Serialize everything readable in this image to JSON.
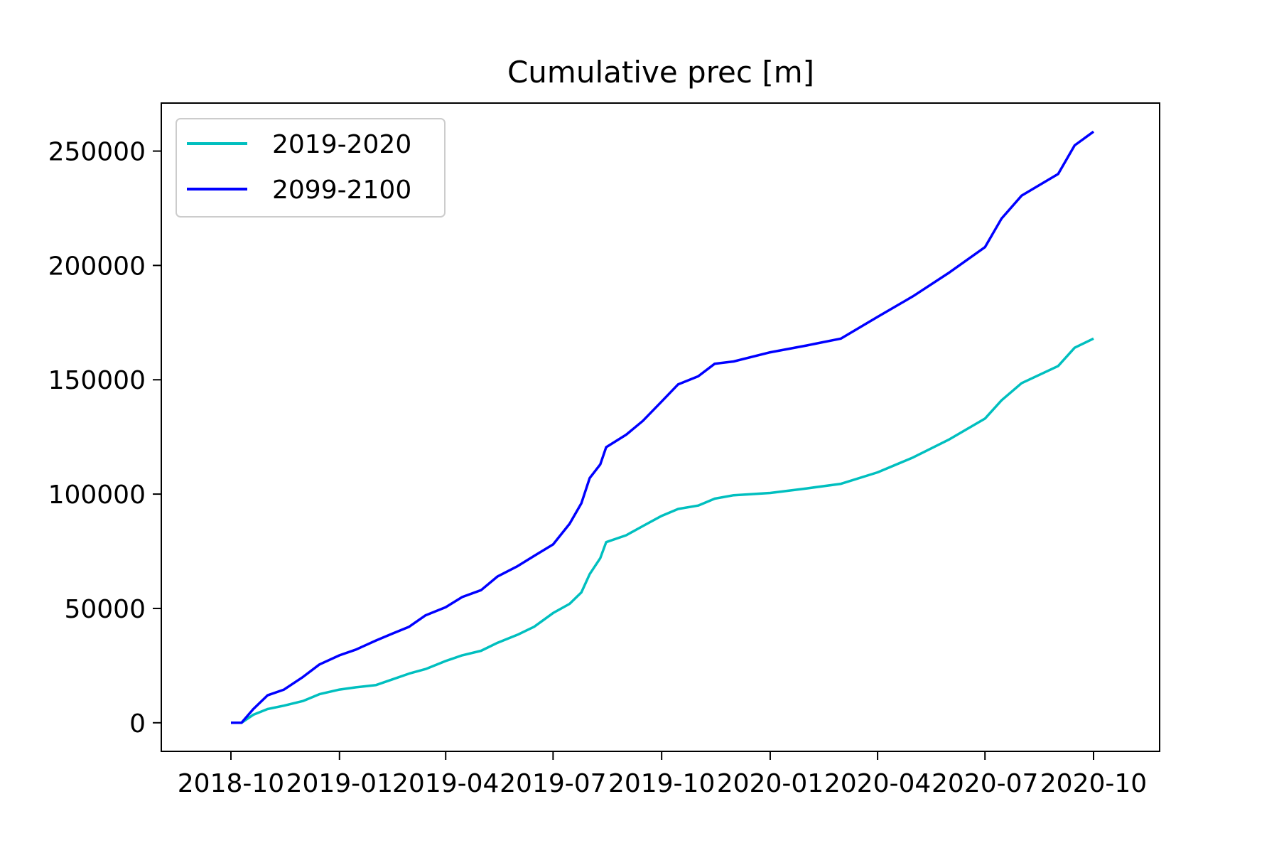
{
  "chart_data": {
    "type": "line",
    "title": "Cumulative prec [m]",
    "xlabel": "",
    "ylabel": "",
    "x_ticks": [
      "2018-10",
      "2019-01",
      "2019-04",
      "2019-07",
      "2019-10",
      "2020-01",
      "2020-04",
      "2020-07",
      "2020-10"
    ],
    "y_ticks": [
      "0",
      "50000",
      "100000",
      "150000",
      "200000",
      "250000"
    ],
    "ylim": [
      -12500,
      271000
    ],
    "xlim": [
      "2018-08-03",
      "2020-11-26"
    ],
    "grid": false,
    "legend_position": "top-left",
    "series": [
      {
        "name": "2019-2020",
        "color": "#00bfbf",
        "points": [
          [
            "2018-10-01",
            0
          ],
          [
            "2018-10-10",
            0
          ],
          [
            "2018-10-20",
            3500
          ],
          [
            "2018-11-01",
            6000
          ],
          [
            "2018-11-15",
            7500
          ],
          [
            "2018-12-01",
            9500
          ],
          [
            "2018-12-15",
            12500
          ],
          [
            "2019-01-01",
            14500
          ],
          [
            "2019-01-15",
            15500
          ],
          [
            "2019-02-01",
            16500
          ],
          [
            "2019-02-15",
            19000
          ],
          [
            "2019-03-01",
            21500
          ],
          [
            "2019-03-15",
            23500
          ],
          [
            "2019-04-01",
            27000
          ],
          [
            "2019-04-15",
            29500
          ],
          [
            "2019-05-01",
            31500
          ],
          [
            "2019-05-15",
            35000
          ],
          [
            "2019-06-01",
            38500
          ],
          [
            "2019-06-15",
            42000
          ],
          [
            "2019-07-01",
            48000
          ],
          [
            "2019-07-15",
            52000
          ],
          [
            "2019-07-25",
            57000
          ],
          [
            "2019-08-01",
            65000
          ],
          [
            "2019-08-10",
            72000
          ],
          [
            "2019-08-15",
            79000
          ],
          [
            "2019-09-01",
            82000
          ],
          [
            "2019-09-15",
            86000
          ],
          [
            "2019-10-01",
            90500
          ],
          [
            "2019-10-15",
            93500
          ],
          [
            "2019-11-01",
            95000
          ],
          [
            "2019-11-15",
            98000
          ],
          [
            "2019-12-01",
            99500
          ],
          [
            "2020-01-01",
            100500
          ],
          [
            "2020-02-01",
            102500
          ],
          [
            "2020-03-01",
            104500
          ],
          [
            "2020-04-01",
            109500
          ],
          [
            "2020-05-01",
            116000
          ],
          [
            "2020-06-01",
            124000
          ],
          [
            "2020-07-01",
            133000
          ],
          [
            "2020-07-15",
            141000
          ],
          [
            "2020-08-01",
            148500
          ],
          [
            "2020-09-01",
            156000
          ],
          [
            "2020-09-15",
            164000
          ],
          [
            "2020-10-01",
            168000
          ]
        ]
      },
      {
        "name": "2099-2100",
        "color": "#0000ff",
        "points": [
          [
            "2018-10-01",
            0
          ],
          [
            "2018-10-10",
            0
          ],
          [
            "2018-10-20",
            6000
          ],
          [
            "2018-11-01",
            12000
          ],
          [
            "2018-11-15",
            14500
          ],
          [
            "2018-12-01",
            20000
          ],
          [
            "2018-12-15",
            25500
          ],
          [
            "2019-01-01",
            29500
          ],
          [
            "2019-01-15",
            32000
          ],
          [
            "2019-02-01",
            36000
          ],
          [
            "2019-02-15",
            39000
          ],
          [
            "2019-03-01",
            42000
          ],
          [
            "2019-03-15",
            47000
          ],
          [
            "2019-04-01",
            50500
          ],
          [
            "2019-04-15",
            55000
          ],
          [
            "2019-05-01",
            58000
          ],
          [
            "2019-05-15",
            64000
          ],
          [
            "2019-06-01",
            68500
          ],
          [
            "2019-06-15",
            73000
          ],
          [
            "2019-07-01",
            78000
          ],
          [
            "2019-07-15",
            87000
          ],
          [
            "2019-07-25",
            96000
          ],
          [
            "2019-08-01",
            107000
          ],
          [
            "2019-08-10",
            113000
          ],
          [
            "2019-08-15",
            120500
          ],
          [
            "2019-09-01",
            126000
          ],
          [
            "2019-09-15",
            132000
          ],
          [
            "2019-10-01",
            140500
          ],
          [
            "2019-10-15",
            148000
          ],
          [
            "2019-11-01",
            151500
          ],
          [
            "2019-11-15",
            157000
          ],
          [
            "2019-12-01",
            158000
          ],
          [
            "2020-01-01",
            162000
          ],
          [
            "2020-02-01",
            165000
          ],
          [
            "2020-03-01",
            168000
          ],
          [
            "2020-04-01",
            177500
          ],
          [
            "2020-05-01",
            186500
          ],
          [
            "2020-06-01",
            197000
          ],
          [
            "2020-07-01",
            208000
          ],
          [
            "2020-07-15",
            220500
          ],
          [
            "2020-08-01",
            230500
          ],
          [
            "2020-09-01",
            240000
          ],
          [
            "2020-09-15",
            252500
          ],
          [
            "2020-10-01",
            258500
          ]
        ]
      }
    ]
  }
}
